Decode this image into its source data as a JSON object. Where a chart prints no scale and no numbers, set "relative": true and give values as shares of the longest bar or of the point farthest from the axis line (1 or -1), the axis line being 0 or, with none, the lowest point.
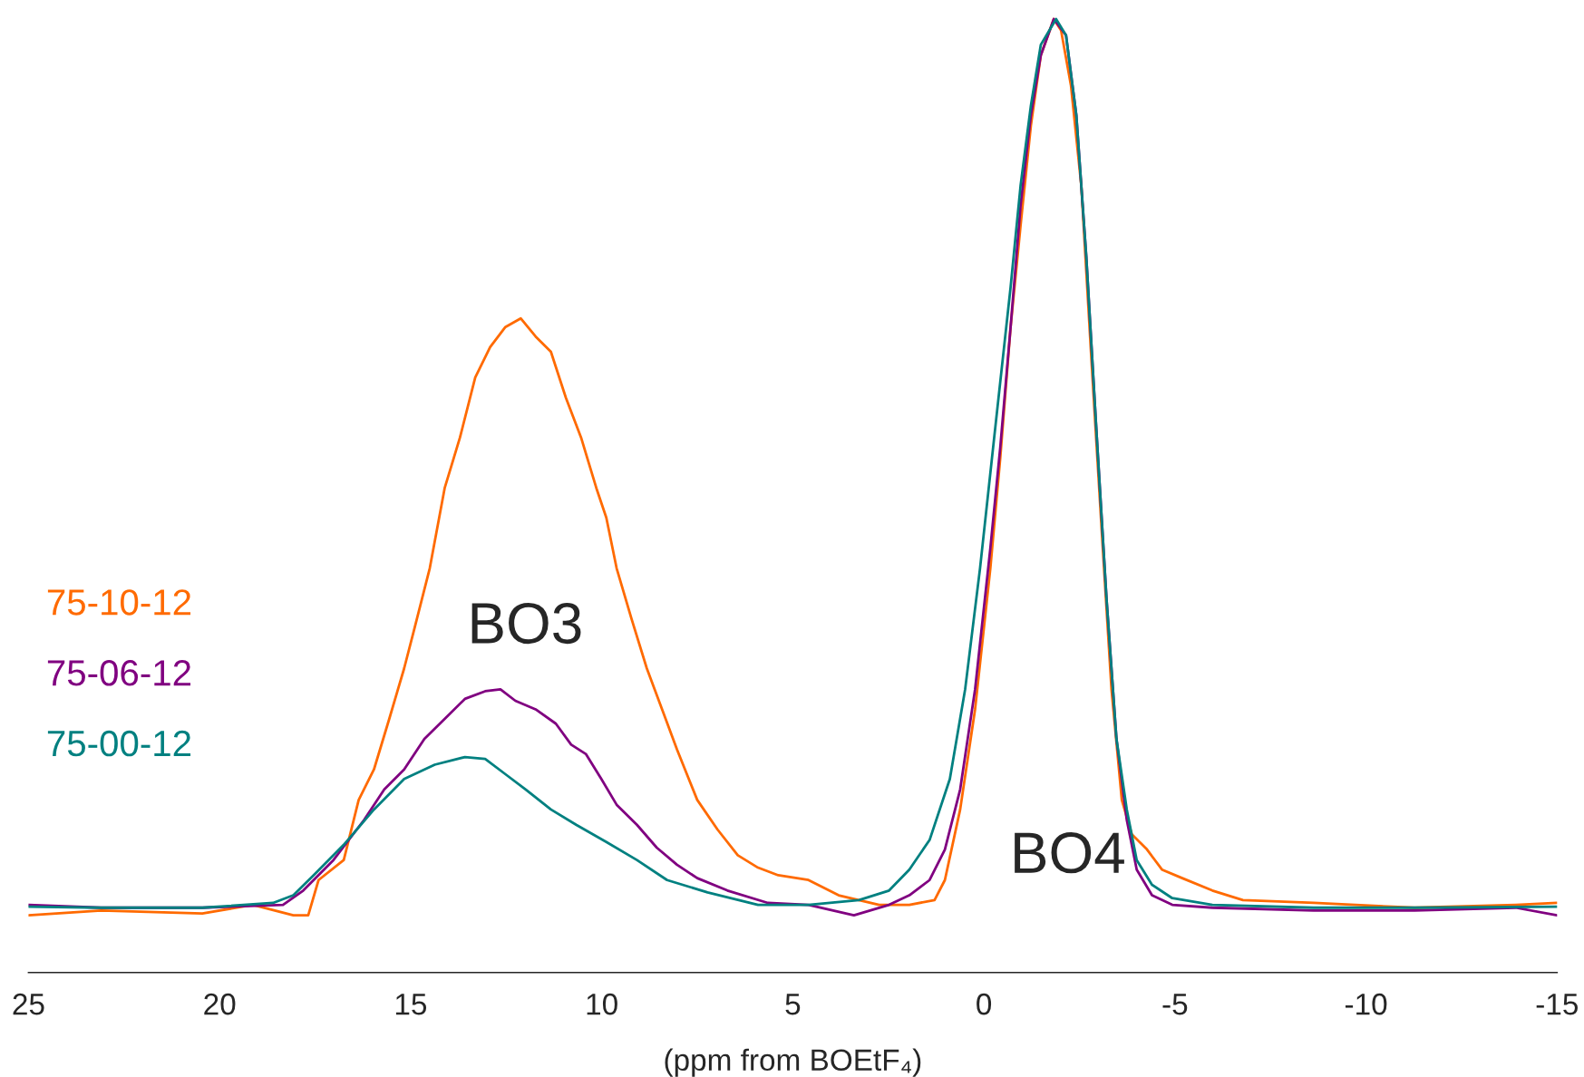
{
  "chart_data": {
    "type": "line",
    "relative": true,
    "xlabel": "(ppm from BOEtF₄)",
    "xlim": [
      25,
      -15
    ],
    "xticks": [
      25,
      20,
      15,
      10,
      5,
      0,
      {
        "value": -5,
        "label": "-5"
      },
      {
        "value": -10,
        "label": "-10"
      },
      {
        "value": -15,
        "label": "-15"
      }
    ],
    "legend": "left",
    "grid": false,
    "tick_labels": "x",
    "annotations": [
      "BO3",
      "BO4"
    ],
    "series": [
      {
        "name": "75-10-12",
        "color": "#ff6a00",
        "x": [
          25.0,
          23.1,
          20.45,
          19.13,
          18.07,
          17.68,
          17.41,
          16.75,
          16.36,
          15.96,
          15.56,
          15.17,
          14.9,
          14.5,
          14.11,
          13.71,
          13.31,
          12.92,
          12.52,
          12.12,
          11.73,
          11.33,
          10.94,
          10.54,
          10.14,
          9.88,
          9.61,
          9.22,
          8.82,
          8.42,
          8.03,
          7.5,
          6.97,
          6.44,
          5.91,
          5.38,
          4.59,
          3.8,
          2.74,
          1.95,
          1.29,
          1.02,
          0.62,
          0.23,
          -0.17,
          -0.43,
          -0.7,
          -0.96,
          -1.23,
          -1.49,
          -1.83,
          -2.02,
          -2.28,
          -2.55,
          -2.81,
          -3.08,
          -3.34,
          -3.61,
          -3.87,
          -4.27,
          -4.66,
          -5.19,
          -5.98,
          -6.78,
          -8.63,
          -11.27,
          -13.92,
          -15.0
        ],
        "values": [
          0.06,
          0.065,
          0.062,
          0.071,
          0.06,
          0.06,
          0.097,
          0.118,
          0.181,
          0.213,
          0.266,
          0.319,
          0.361,
          0.424,
          0.508,
          0.561,
          0.624,
          0.656,
          0.677,
          0.686,
          0.667,
          0.651,
          0.603,
          0.561,
          0.508,
          0.477,
          0.424,
          0.371,
          0.319,
          0.276,
          0.234,
          0.181,
          0.15,
          0.123,
          0.11,
          0.102,
          0.097,
          0.081,
          0.071,
          0.071,
          0.076,
          0.097,
          0.171,
          0.276,
          0.424,
          0.54,
          0.677,
          0.783,
          0.888,
          0.962,
          1.0,
          0.988,
          0.93,
          0.825,
          0.646,
          0.466,
          0.297,
          0.181,
          0.145,
          0.129,
          0.108,
          0.099,
          0.086,
          0.076,
          0.073,
          0.068,
          0.071,
          0.073
        ]
      },
      {
        "name": "75-06-12",
        "color": "#800080",
        "x": [
          25.0,
          23.1,
          20.45,
          18.34,
          17.81,
          17.02,
          16.22,
          15.69,
          15.17,
          14.64,
          14.11,
          13.58,
          13.05,
          12.65,
          12.26,
          11.73,
          11.2,
          10.8,
          10.41,
          10.01,
          9.61,
          9.08,
          8.56,
          8.03,
          7.5,
          6.71,
          5.65,
          4.59,
          3.4,
          2.48,
          1.95,
          1.42,
          1.02,
          0.62,
          0.23,
          -0.17,
          -0.43,
          -0.7,
          -0.96,
          -1.23,
          -1.49,
          -1.83,
          -2.15,
          -2.42,
          -2.68,
          -2.94,
          -3.21,
          -3.47,
          -3.74,
          -4.0,
          -4.4,
          -4.93,
          -5.98,
          -8.63,
          -11.27,
          -13.92,
          -15.0
        ],
        "values": [
          0.071,
          0.068,
          0.068,
          0.071,
          0.086,
          0.118,
          0.16,
          0.192,
          0.213,
          0.245,
          0.266,
          0.287,
          0.295,
          0.297,
          0.285,
          0.276,
          0.261,
          0.239,
          0.229,
          0.203,
          0.176,
          0.155,
          0.131,
          0.113,
          0.099,
          0.086,
          0.073,
          0.071,
          0.06,
          0.071,
          0.081,
          0.097,
          0.129,
          0.192,
          0.297,
          0.445,
          0.551,
          0.677,
          0.804,
          0.899,
          0.962,
          1.0,
          0.983,
          0.899,
          0.751,
          0.572,
          0.392,
          0.245,
          0.16,
          0.108,
          0.081,
          0.071,
          0.068,
          0.065,
          0.065,
          0.068,
          0.06
        ]
      },
      {
        "name": "75-00-12",
        "color": "#008080",
        "x": [
          25.0,
          23.1,
          20.45,
          18.6,
          18.07,
          17.54,
          16.75,
          15.96,
          15.17,
          14.37,
          13.58,
          13.05,
          12.52,
          11.99,
          11.33,
          10.67,
          9.88,
          9.08,
          8.29,
          7.23,
          5.91,
          4.59,
          3.27,
          2.48,
          1.95,
          1.42,
          0.89,
          0.49,
          0.1,
          -0.3,
          -0.7,
          -0.96,
          -1.23,
          -1.49,
          -1.89,
          -2.15,
          -2.42,
          -2.68,
          -2.94,
          -3.21,
          -3.47,
          -3.74,
          -4.0,
          -4.4,
          -4.93,
          -5.98,
          -8.63,
          -11.27,
          -15.0
        ],
        "values": [
          0.069,
          0.068,
          0.068,
          0.073,
          0.081,
          0.102,
          0.134,
          0.171,
          0.203,
          0.218,
          0.226,
          0.224,
          0.208,
          0.192,
          0.171,
          0.155,
          0.137,
          0.118,
          0.097,
          0.084,
          0.071,
          0.071,
          0.076,
          0.086,
          0.108,
          0.139,
          0.203,
          0.297,
          0.424,
          0.572,
          0.719,
          0.825,
          0.909,
          0.973,
          1.0,
          0.983,
          0.899,
          0.751,
          0.572,
          0.392,
          0.245,
          0.171,
          0.118,
          0.092,
          0.078,
          0.071,
          0.068,
          0.068,
          0.069
        ]
      }
    ]
  }
}
